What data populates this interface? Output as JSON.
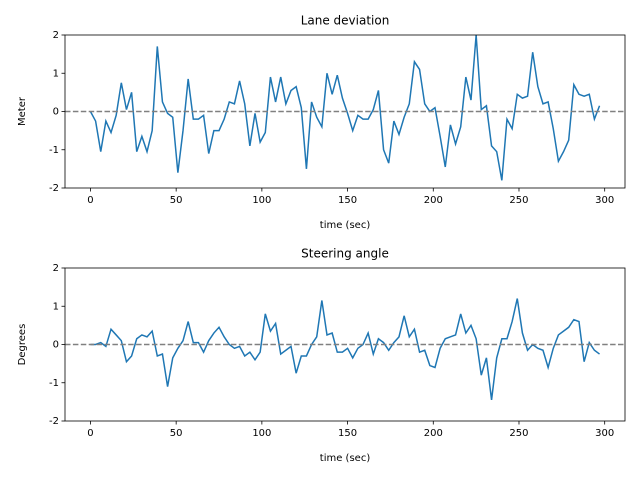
{
  "chart_data": [
    {
      "type": "line",
      "title": "Lane deviation",
      "x_label": "time (sec)",
      "y_label": "Meter",
      "color": "#1f77b4",
      "x": [
        0,
        3,
        6,
        9,
        12,
        15,
        18,
        21,
        24,
        27,
        30,
        33,
        36,
        39,
        42,
        45,
        48,
        51,
        54,
        57,
        60,
        63,
        66,
        69,
        72,
        75,
        78,
        81,
        84,
        87,
        90,
        93,
        96,
        99,
        102,
        105,
        108,
        111,
        114,
        117,
        120,
        123,
        126,
        129,
        132,
        135,
        138,
        141,
        144,
        147,
        150,
        153,
        156,
        159,
        162,
        165,
        168,
        171,
        174,
        177,
        180,
        183,
        186,
        189,
        192,
        195,
        198,
        201,
        204,
        207,
        210,
        213,
        216,
        219,
        222,
        225,
        228,
        231,
        234,
        237,
        240,
        243,
        246,
        249,
        252,
        255,
        258,
        261,
        264,
        267,
        270,
        273,
        276,
        279,
        282,
        285,
        288,
        291,
        294,
        297
      ],
      "values": [
        0,
        -0.25,
        -1.05,
        -0.25,
        -0.55,
        -0.1,
        0.75,
        0.05,
        0.5,
        -1.05,
        -0.65,
        -1.05,
        -0.5,
        1.7,
        0.25,
        -0.05,
        -0.15,
        -1.6,
        -0.5,
        0.85,
        -0.2,
        -0.2,
        -0.1,
        -1.1,
        -0.5,
        -0.5,
        -0.2,
        0.25,
        0.2,
        0.8,
        0.2,
        -0.9,
        -0.05,
        -0.8,
        -0.55,
        0.9,
        0.25,
        0.9,
        0.2,
        0.55,
        0.65,
        0.1,
        -1.5,
        0.25,
        -0.15,
        -0.4,
        1.0,
        0.45,
        0.95,
        0.35,
        -0.05,
        -0.5,
        -0.1,
        -0.2,
        -0.2,
        0.05,
        0.55,
        -1.0,
        -1.35,
        -0.25,
        -0.6,
        -0.15,
        0.2,
        1.3,
        1.1,
        0.2,
        0.0,
        0.1,
        -0.65,
        -1.45,
        -0.35,
        -0.85,
        -0.4,
        0.9,
        0.3,
        2.0,
        0.05,
        0.15,
        -0.9,
        -1.05,
        -1.8,
        -0.2,
        -0.45,
        0.45,
        0.35,
        0.4,
        1.55,
        0.65,
        0.2,
        0.25,
        -0.45,
        -1.3,
        -1.05,
        -0.75,
        0.7,
        0.45,
        0.4,
        0.45,
        -0.2,
        0.15
      ],
      "hline": 0,
      "xlim": [
        -14.85,
        311.85
      ],
      "xticks": [
        0,
        50,
        100,
        150,
        200,
        250,
        300
      ],
      "ylim": [
        -2,
        2
      ],
      "yticks": [
        -2,
        -1,
        0,
        1,
        2
      ]
    },
    {
      "type": "line",
      "title": "Steering angle",
      "x_label": "time (sec)",
      "y_label": "Degrees",
      "color": "#1f77b4",
      "x": [
        0,
        3,
        6,
        9,
        12,
        15,
        18,
        21,
        24,
        27,
        30,
        33,
        36,
        39,
        42,
        45,
        48,
        51,
        54,
        57,
        60,
        63,
        66,
        69,
        72,
        75,
        78,
        81,
        84,
        87,
        90,
        93,
        96,
        99,
        102,
        105,
        108,
        111,
        114,
        117,
        120,
        123,
        126,
        129,
        132,
        135,
        138,
        141,
        144,
        147,
        150,
        153,
        156,
        159,
        162,
        165,
        168,
        171,
        174,
        177,
        180,
        183,
        186,
        189,
        192,
        195,
        198,
        201,
        204,
        207,
        210,
        213,
        216,
        219,
        222,
        225,
        228,
        231,
        234,
        237,
        240,
        243,
        246,
        249,
        252,
        255,
        258,
        261,
        264,
        267,
        270,
        273,
        276,
        279,
        282,
        285,
        288,
        291,
        294,
        297
      ],
      "values": [
        0,
        0,
        0.05,
        -0.05,
        0.4,
        0.25,
        0.1,
        -0.45,
        -0.3,
        0.15,
        0.25,
        0.2,
        0.35,
        -0.3,
        -0.25,
        -1.1,
        -0.35,
        -0.1,
        0.1,
        0.6,
        0.05,
        0.05,
        -0.2,
        0.1,
        0.3,
        0.45,
        0.2,
        0,
        -0.1,
        -0.05,
        -0.3,
        -0.2,
        -0.4,
        -0.2,
        0.8,
        0.35,
        0.55,
        -0.25,
        -0.15,
        -0.05,
        -0.75,
        -0.3,
        -0.3,
        0,
        0.2,
        1.15,
        0.25,
        0.3,
        -0.2,
        -0.2,
        -0.1,
        -0.35,
        -0.1,
        0,
        0.3,
        -0.25,
        0.15,
        0.05,
        -0.15,
        0.05,
        0.2,
        0.75,
        0.2,
        0.4,
        -0.2,
        -0.15,
        -0.55,
        -0.6,
        -0.1,
        0.15,
        0.2,
        0.25,
        0.8,
        0.3,
        0.5,
        0.15,
        -0.8,
        -0.35,
        -1.45,
        -0.35,
        0.15,
        0.15,
        0.6,
        1.2,
        0.3,
        -0.15,
        0,
        -0.1,
        -0.15,
        -0.6,
        -0.1,
        0.25,
        0.35,
        0.45,
        0.65,
        0.6,
        -0.45,
        0.05,
        -0.15,
        -0.25
      ],
      "hline": 0,
      "xlim": [
        -14.85,
        311.85
      ],
      "xticks": [
        0,
        50,
        100,
        150,
        200,
        250,
        300
      ],
      "ylim": [
        -2,
        2
      ],
      "yticks": [
        -2,
        -1,
        0,
        1,
        2
      ]
    }
  ]
}
